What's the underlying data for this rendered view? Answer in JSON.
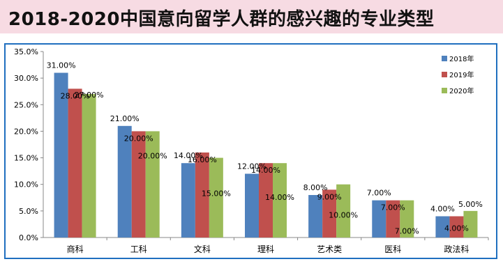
{
  "header": {
    "title": "2018-2020中国意向留学人群的感兴趣的专业类型"
  },
  "chart_data": {
    "type": "bar",
    "categories": [
      "商科",
      "工科",
      "文科",
      "理科",
      "艺术类",
      "医科",
      "政法科"
    ],
    "series": [
      {
        "name": "2018年",
        "color": "#4f81bd",
        "values": [
          31,
          21,
          14,
          12,
          8,
          7,
          4
        ],
        "labels": [
          "31.00%",
          "21.00%",
          "14.00%",
          "12.00%",
          "8.00%",
          "7.00%",
          "4.00%"
        ]
      },
      {
        "name": "2019年",
        "color": "#c0504d",
        "values": [
          28,
          20,
          16,
          14,
          9,
          7,
          4
        ],
        "labels": [
          "28.00%",
          "20.00%",
          "16.00%",
          "14.00%",
          "9.00%",
          "7.00%",
          "4.00%"
        ]
      },
      {
        "name": "2020年",
        "color": "#9bbb59",
        "values": [
          27,
          20,
          15,
          14,
          10,
          7,
          5
        ],
        "labels": [
          "27.00%",
          "20.00%",
          "15.00%",
          "14.00%",
          "10.00%",
          "7.00%",
          "5.00%"
        ]
      }
    ],
    "yticks": [
      "0.0%",
      "5.0%",
      "10.0%",
      "15.0%",
      "20.0%",
      "25.0%",
      "30.0%",
      "35.0%"
    ],
    "ylim": [
      0,
      35
    ],
    "grid": false,
    "legend": "top-right"
  }
}
